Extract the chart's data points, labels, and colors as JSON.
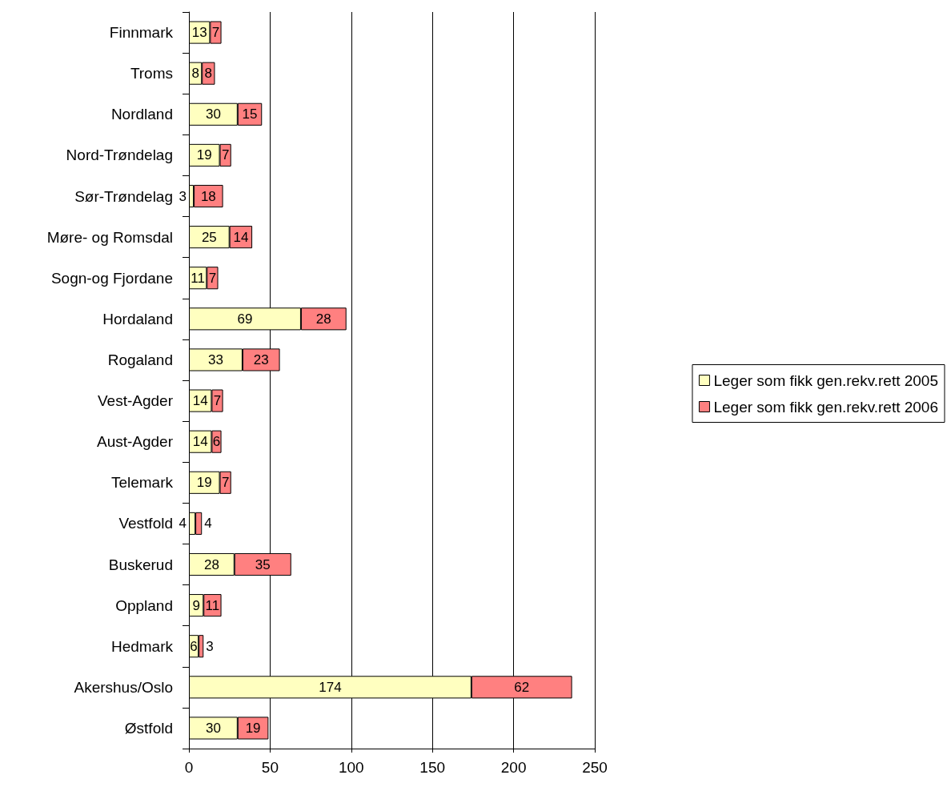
{
  "chart_data": {
    "type": "bar",
    "orientation": "horizontal",
    "stacked": true,
    "data_labels": true,
    "grid": "x",
    "legend": "right",
    "categories": [
      "Finnmark",
      "Troms",
      "Nordland",
      "Nord-Trøndelag",
      "Sør-Trøndelag",
      "Møre- og Romsdal",
      "Sogn-og Fjordane",
      "Hordaland",
      "Rogaland",
      "Vest-Agder",
      "Aust-Agder",
      "Telemark",
      "Vestfold",
      "Buskerud",
      "Oppland",
      "Hedmark",
      "Akershus/Oslo",
      "Østfold"
    ],
    "series": [
      {
        "name": "Leger som fikk gen.rekv.rett 2005",
        "color": "#ffffc0",
        "values": [
          13,
          8,
          30,
          19,
          3,
          25,
          11,
          69,
          33,
          14,
          14,
          19,
          4,
          28,
          9,
          6,
          174,
          30
        ]
      },
      {
        "name": "Leger som fikk gen.rekv.rett 2006",
        "color": "#ff8080",
        "values": [
          7,
          8,
          15,
          7,
          18,
          14,
          7,
          28,
          23,
          7,
          6,
          7,
          4,
          35,
          11,
          3,
          62,
          19
        ]
      }
    ],
    "xlim": [
      0,
      250
    ],
    "xticks": [
      0,
      50,
      100,
      150,
      200,
      250
    ]
  }
}
